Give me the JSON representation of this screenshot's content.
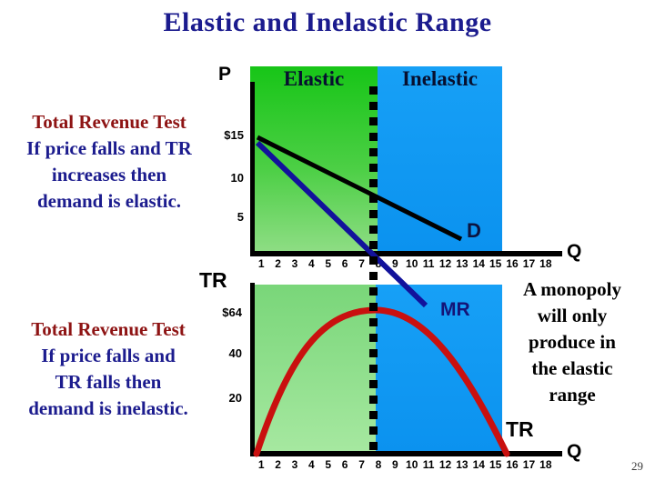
{
  "slide": {
    "title": "Elastic and Inelastic Range",
    "page_number": "29"
  },
  "left_text": {
    "block1": {
      "heading": "Total Revenue Test",
      "line1": "If price falls and TR",
      "line2": "increases then",
      "line3": "demand is elastic."
    },
    "block2": {
      "heading": "Total Revenue Test",
      "line1": "If price falls and",
      "line2": "TR falls then",
      "line3": "demand is inelastic."
    }
  },
  "right_text": {
    "line1": "A monopoly",
    "line2": "will only",
    "line3": "produce in",
    "line4": "the elastic",
    "line5": "range"
  },
  "top_chart": {
    "y_axis_label": "P",
    "x_axis_label": "Q",
    "elastic_region_label": "Elastic",
    "inelastic_region_label": "Inelastic",
    "demand_curve_label": "D",
    "y_ticks": [
      "$15",
      "10",
      "5"
    ],
    "x_ticks": [
      "1",
      "2",
      "3",
      "4",
      "5",
      "6",
      "7",
      "8",
      "9",
      "10",
      "11",
      "12",
      "13",
      "14",
      "15",
      "16",
      "17",
      "18"
    ]
  },
  "bottom_chart": {
    "y_axis_label": "TR",
    "x_axis_label": "Q",
    "mr_curve_label": "MR",
    "tr_curve_label": "TR",
    "y_ticks": [
      "$64",
      "40",
      "20"
    ],
    "x_ticks": [
      "1",
      "2",
      "3",
      "4",
      "5",
      "6",
      "7",
      "8",
      "9",
      "10",
      "11",
      "12",
      "13",
      "14",
      "15",
      "16",
      "17",
      "18"
    ]
  },
  "colors": {
    "title_navy": "#1b1b8e",
    "heading_dark_red": "#8e1414",
    "elastic_green": "#1ec81e",
    "inelastic_blue": "#0d99f3",
    "demand_line": "#000000",
    "mr_line": "#12129b",
    "tr_curve_red": "#c9100f"
  },
  "chart_data": [
    {
      "type": "line",
      "panel": "demand-and-mr",
      "xlabel": "Q",
      "ylabel": "P",
      "x_range": [
        0,
        18
      ],
      "y_tick_labels": [
        "$15",
        "10",
        "5"
      ],
      "boundary_x": 8,
      "regions": [
        {
          "label": "Elastic",
          "x_from": 0,
          "x_to": 8,
          "color": "#1ec81e"
        },
        {
          "label": "Inelastic",
          "x_from": 8,
          "x_to": 15.5,
          "color": "#0d99f3"
        }
      ],
      "series": [
        {
          "name": "D",
          "color": "#000000",
          "points": [
            [
              1,
              15
            ],
            [
              13,
              3
            ]
          ]
        },
        {
          "name": "MR",
          "color": "#12129b",
          "points": [
            [
              1,
              14
            ],
            [
              8,
              0
            ],
            [
              10.9,
              -5.8
            ]
          ]
        }
      ]
    },
    {
      "type": "line",
      "panel": "total-revenue",
      "xlabel": "Q",
      "ylabel": "TR",
      "x_range": [
        0,
        18
      ],
      "y_tick_labels": [
        "$64",
        "40",
        "20"
      ],
      "boundary_x": 8,
      "series": [
        {
          "name": "TR",
          "color": "#c9100f",
          "points": [
            [
              1,
              15
            ],
            [
              2,
              28
            ],
            [
              3,
              39
            ],
            [
              4,
              48
            ],
            [
              5,
              55
            ],
            [
              6,
              60
            ],
            [
              7,
              63
            ],
            [
              8,
              64
            ],
            [
              9,
              63
            ],
            [
              10,
              60
            ],
            [
              11,
              55
            ],
            [
              12,
              48
            ],
            [
              13,
              39
            ],
            [
              14,
              28
            ],
            [
              15,
              15
            ],
            [
              15.7,
              4
            ]
          ]
        }
      ]
    }
  ]
}
